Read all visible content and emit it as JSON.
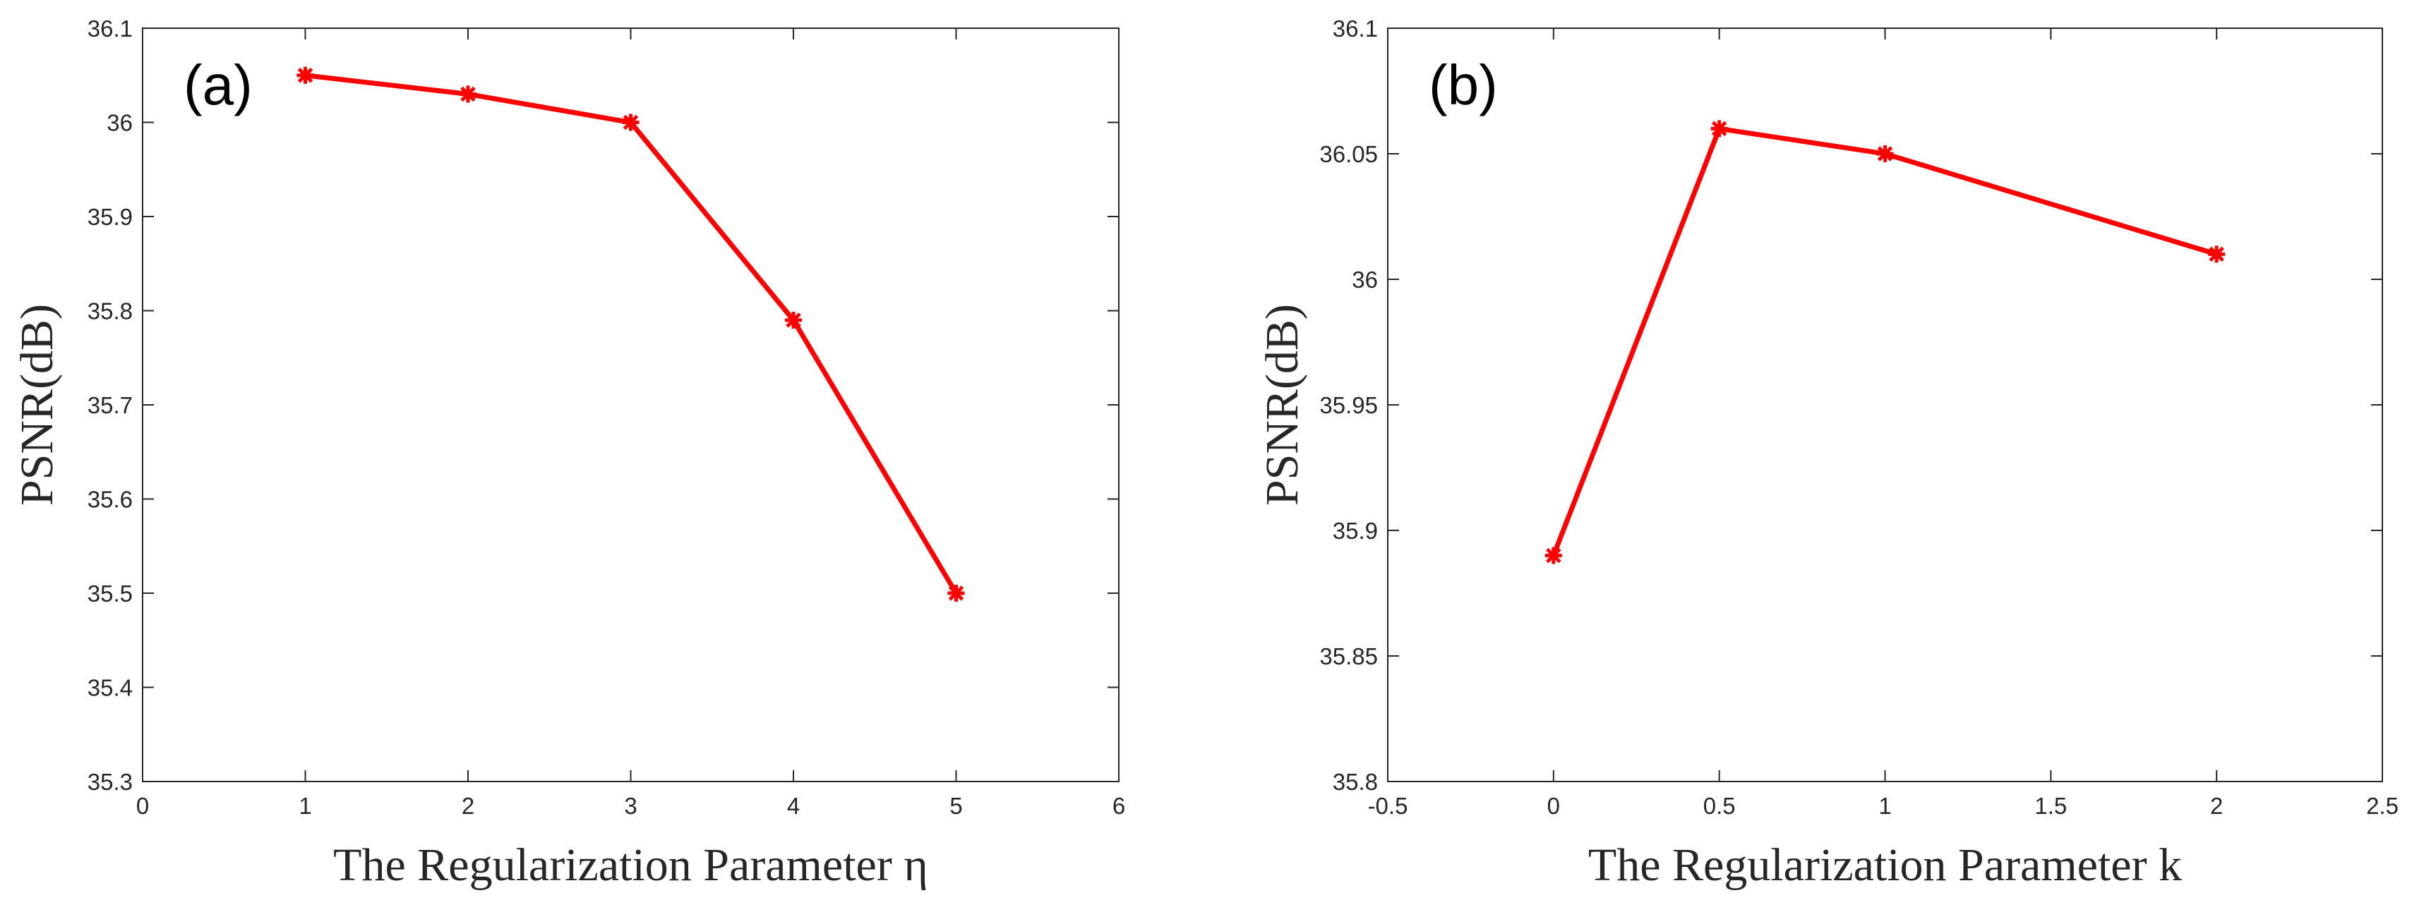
{
  "chart_data": [
    {
      "type": "line",
      "annotation": "(a)",
      "title": "",
      "xlabel": "The Regularization Parameter η",
      "ylabel": "PSNR(dB)",
      "xlim": [
        0,
        6
      ],
      "ylim": [
        35.3,
        36.1
      ],
      "xticks": [
        "0",
        "1",
        "2",
        "3",
        "4",
        "5",
        "6"
      ],
      "yticks": [
        "35.3",
        "35.4",
        "35.5",
        "35.6",
        "35.7",
        "35.8",
        "35.9",
        "36",
        "36.1"
      ],
      "grid": false,
      "series": [
        {
          "x": [
            1,
            2,
            3,
            4,
            5
          ],
          "values": [
            36.05,
            36.03,
            36.0,
            35.79,
            35.5
          ],
          "color": "#ff0000",
          "marker": "asterisk"
        }
      ]
    },
    {
      "type": "line",
      "annotation": "(b)",
      "title": "",
      "xlabel": "The Regularization Parameter k",
      "ylabel": "PSNR(dB)",
      "xlim": [
        -0.5,
        2.5
      ],
      "ylim": [
        35.8,
        36.1
      ],
      "xticks": [
        "-0.5",
        "0",
        "0.5",
        "1",
        "1.5",
        "2",
        "2.5"
      ],
      "yticks": [
        "35.8",
        "35.85",
        "35.9",
        "35.95",
        "36",
        "36.05",
        "36.1"
      ],
      "grid": false,
      "series": [
        {
          "x": [
            0,
            0.5,
            1,
            2
          ],
          "values": [
            35.89,
            36.06,
            36.05,
            36.01
          ],
          "color": "#ff0000",
          "marker": "asterisk"
        }
      ]
    }
  ]
}
